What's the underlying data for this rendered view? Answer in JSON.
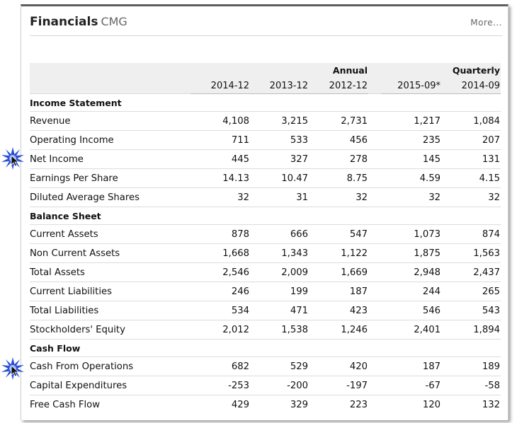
{
  "header": {
    "title": "Financials",
    "ticker": "CMG",
    "more_label": "More..."
  },
  "groups": {
    "annual": "Annual",
    "quarterly": "Quarterly"
  },
  "periods": {
    "annual": [
      "2014-12",
      "2013-12",
      "2012-12"
    ],
    "quarterly": [
      "2015-09*",
      "2014-09"
    ]
  },
  "sections": {
    "income": {
      "title": "Income Statement",
      "rows": [
        {
          "label": "Revenue",
          "values": [
            "4,108",
            "3,215",
            "2,731",
            "1,217",
            "1,084"
          ]
        },
        {
          "label": "Operating Income",
          "values": [
            "711",
            "533",
            "456",
            "235",
            "207"
          ]
        },
        {
          "label": "Net Income",
          "values": [
            "445",
            "327",
            "278",
            "145",
            "131"
          ]
        },
        {
          "label": "Earnings Per Share",
          "values": [
            "14.13",
            "10.47",
            "8.75",
            "4.59",
            "4.15"
          ]
        },
        {
          "label": "Diluted Average Shares",
          "values": [
            "32",
            "31",
            "32",
            "32",
            "32"
          ]
        }
      ]
    },
    "balance": {
      "title": "Balance Sheet",
      "rows": [
        {
          "label": "Current Assets",
          "values": [
            "878",
            "666",
            "547",
            "1,073",
            "874"
          ]
        },
        {
          "label": "Non Current Assets",
          "values": [
            "1,668",
            "1,343",
            "1,122",
            "1,875",
            "1,563"
          ]
        },
        {
          "label": "Total Assets",
          "values": [
            "2,546",
            "2,009",
            "1,669",
            "2,948",
            "2,437"
          ]
        },
        {
          "label": "Current Liabilities",
          "values": [
            "246",
            "199",
            "187",
            "244",
            "265"
          ]
        },
        {
          "label": "Total Liabilities",
          "values": [
            "534",
            "471",
            "423",
            "546",
            "543"
          ]
        },
        {
          "label": "Stockholders' Equity",
          "values": [
            "2,012",
            "1,538",
            "1,246",
            "2,401",
            "1,894"
          ]
        }
      ]
    },
    "cashflow": {
      "title": "Cash Flow",
      "rows": [
        {
          "label": "Cash From Operations",
          "values": [
            "682",
            "529",
            "420",
            "187",
            "189"
          ]
        },
        {
          "label": "Capital Expenditures",
          "values": [
            "-253",
            "-200",
            "-197",
            "-67",
            "-58"
          ]
        },
        {
          "label": "Free Cash Flow",
          "values": [
            "429",
            "329",
            "223",
            "120",
            "132"
          ]
        }
      ]
    }
  },
  "markers": [
    {
      "icon": "starburst-pointer-icon",
      "row": "Net Income",
      "color": "#2a4fd6"
    },
    {
      "icon": "starburst-pointer-icon",
      "row": "Cash From Operations",
      "color": "#2a4fd6"
    }
  ]
}
